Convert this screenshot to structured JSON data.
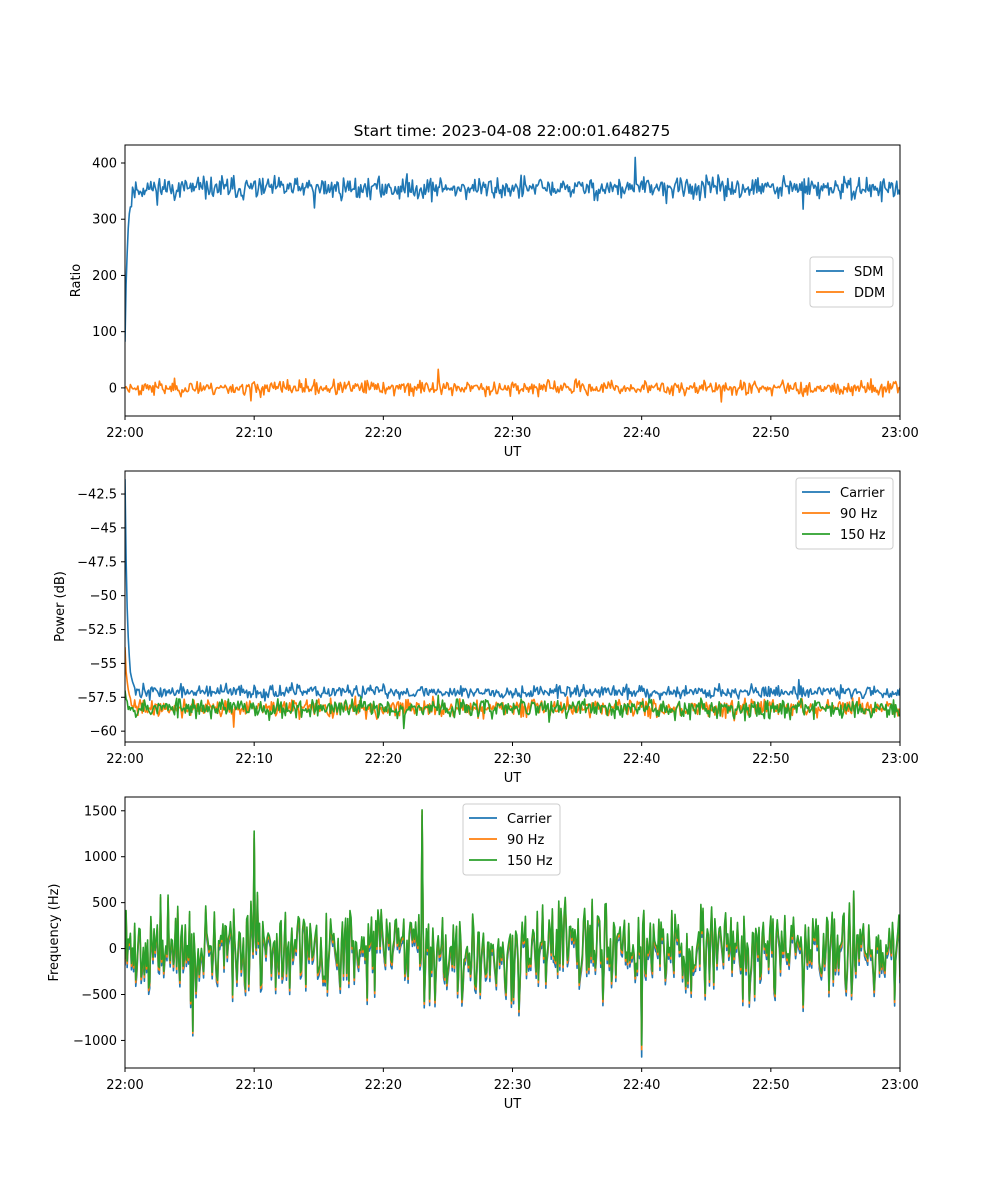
{
  "title": "Start time: 2023-04-08 22:00:01.648275",
  "colors": {
    "blue": "#1f77b4",
    "orange": "#ff7f0e",
    "green": "#2ca02c"
  },
  "chart_data": [
    {
      "type": "line",
      "title": "Start time: 2023-04-08 22:00:01.648275",
      "xlabel": "UT",
      "ylabel": "Ratio",
      "x_range": [
        "22:00",
        "23:00"
      ],
      "ylim": [
        -50,
        432
      ],
      "xticks": [
        "22:00",
        "22:10",
        "22:20",
        "22:30",
        "22:40",
        "22:50",
        "23:00"
      ],
      "yticks": [
        0,
        100,
        200,
        300,
        400
      ],
      "grid": false,
      "legend_position": "center-right",
      "series": [
        {
          "name": "SDM",
          "color": "#1f77b4",
          "start": 82,
          "mean": 355,
          "noise": 14,
          "peaks": [
            [
              0.658,
              410
            ],
            [
              0.245,
              320
            ],
            [
              0.875,
              318
            ]
          ],
          "seed": 11
        },
        {
          "name": "DDM",
          "color": "#ff7f0e",
          "start": 0,
          "mean": 0,
          "noise": 9,
          "peaks": [
            [
              0.404,
              33
            ],
            [
              0.162,
              -23
            ],
            [
              0.77,
              -25
            ]
          ],
          "seed": 23
        }
      ]
    },
    {
      "type": "line",
      "title": "",
      "xlabel": "UT",
      "ylabel": "Power (dB)",
      "x_range": [
        "22:00",
        "23:00"
      ],
      "ylim": [
        -60.8,
        -40.8
      ],
      "xticks": [
        "22:00",
        "22:10",
        "22:20",
        "22:30",
        "22:40",
        "22:50",
        "23:00"
      ],
      "yticks": [
        -42.5,
        -45.0,
        -47.5,
        -50.0,
        -52.5,
        -55.0,
        -57.5,
        -60.0
      ],
      "grid": false,
      "legend_position": "top-right",
      "series": [
        {
          "name": "Carrier",
          "color": "#1f77b4",
          "start": -41.4,
          "mean": -57.1,
          "noise": 0.35,
          "peaks": [
            [
              0.87,
              -56.2
            ]
          ],
          "seed": 37
        },
        {
          "name": "90 Hz",
          "color": "#ff7f0e",
          "start": -53.8,
          "mean": -58.3,
          "noise": 0.45,
          "peaks": [
            [
              0.14,
              -59.7
            ]
          ],
          "seed": 41
        },
        {
          "name": "150 Hz",
          "color": "#2ca02c",
          "start": -57.0,
          "mean": -58.3,
          "noise": 0.5,
          "peaks": [
            [
              0.36,
              -59.8
            ]
          ],
          "seed": 53
        }
      ]
    },
    {
      "type": "line",
      "title": "",
      "xlabel": "UT",
      "ylabel": "Frequency (Hz)",
      "x_range": [
        "22:00",
        "23:00"
      ],
      "ylim": [
        -1300,
        1650
      ],
      "xticks": [
        "22:00",
        "22:10",
        "22:20",
        "22:30",
        "22:40",
        "22:50",
        "23:00"
      ],
      "yticks": [
        -1000,
        -500,
        0,
        500,
        1000,
        1500
      ],
      "grid": false,
      "legend_position": "upper-center",
      "series": [
        {
          "name": "Carrier",
          "color": "#1f77b4",
          "mean": -70,
          "noise": 330,
          "seed": 71,
          "peaks": [
            [
              0.167,
              1200
            ],
            [
              0.384,
              1450
            ],
            [
              0.667,
              -1180
            ],
            [
              0.088,
              -950
            ]
          ]
        },
        {
          "name": "90 Hz",
          "color": "#ff7f0e",
          "mean": -30,
          "noise": 330,
          "seed": 71,
          "peaks": [
            [
              0.167,
              1250
            ],
            [
              0.384,
              1500
            ],
            [
              0.667,
              -1100
            ],
            [
              0.088,
              -920
            ]
          ]
        },
        {
          "name": "150 Hz",
          "color": "#2ca02c",
          "mean": 0,
          "noise": 330,
          "seed": 71,
          "peaks": [
            [
              0.167,
              1280
            ],
            [
              0.384,
              1510
            ],
            [
              0.667,
              -1050
            ],
            [
              0.088,
              -900
            ]
          ]
        }
      ]
    }
  ]
}
